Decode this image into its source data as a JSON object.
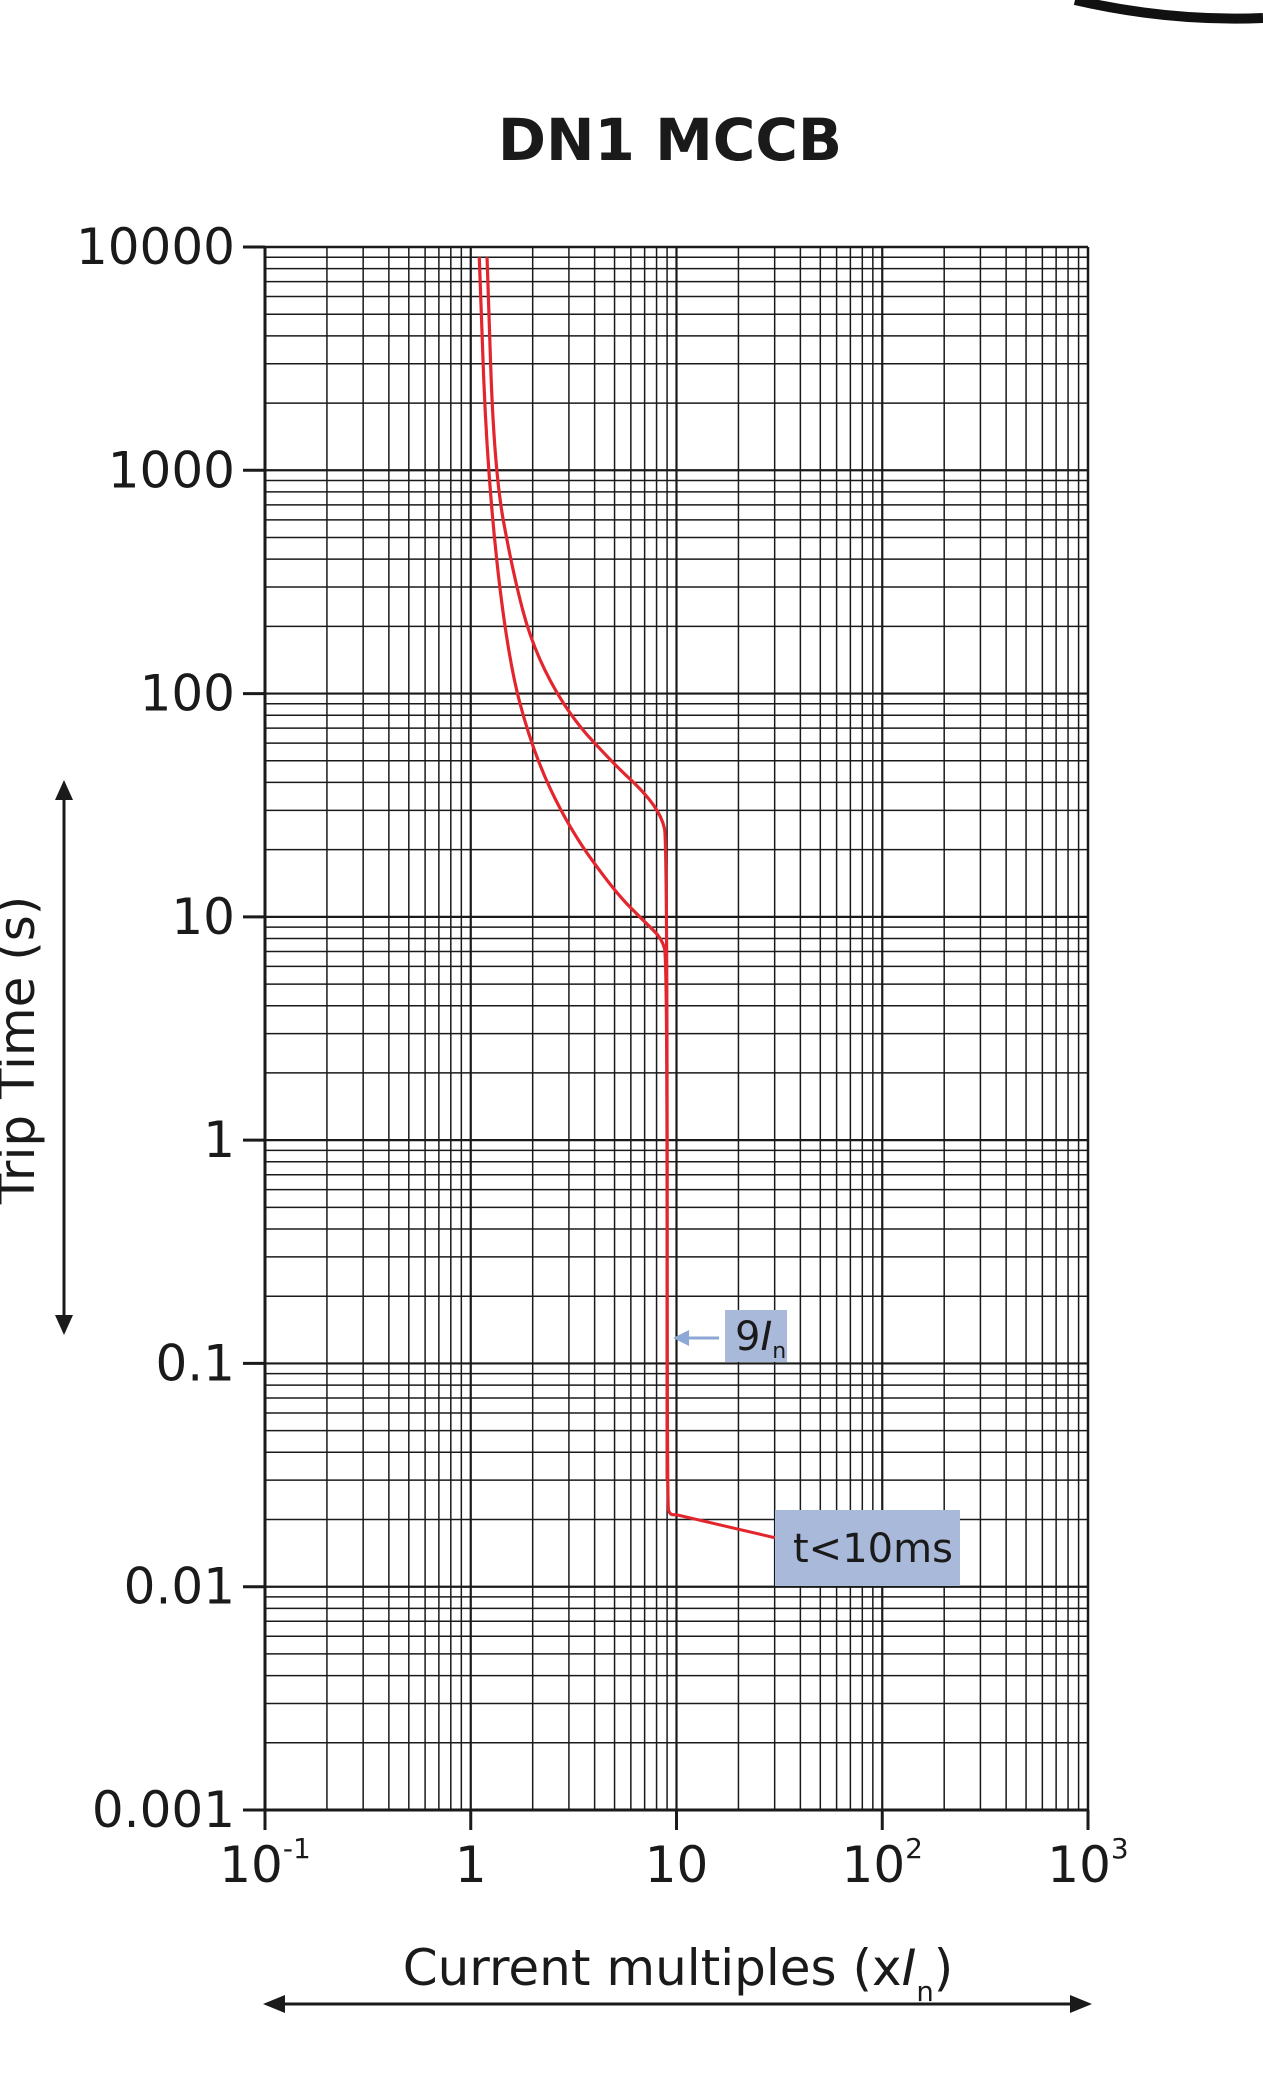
{
  "chart_data": {
    "type": "line",
    "title": "DN1 MCCB",
    "xlabel": {
      "prefix": "Current multiples (x",
      "italic": "I",
      "sub": "n",
      "suffix": ")"
    },
    "ylabel": "Trip Time (s)",
    "x_scale": "log",
    "y_scale": "log",
    "xlim": [
      0.1,
      1000
    ],
    "ylim": [
      0.001,
      10000
    ],
    "grid": true,
    "x_ticks": [
      {
        "value": 0.1,
        "base": "10",
        "exp": "-1"
      },
      {
        "value": 1,
        "base": "1",
        "exp": ""
      },
      {
        "value": 10,
        "base": "10",
        "exp": ""
      },
      {
        "value": 100,
        "base": "10",
        "exp": "2"
      },
      {
        "value": 1000,
        "base": "10",
        "exp": "3"
      }
    ],
    "y_ticks": [
      {
        "value": 10000,
        "label": "10000"
      },
      {
        "value": 1000,
        "label": "1000"
      },
      {
        "value": 100,
        "label": "100"
      },
      {
        "value": 10,
        "label": "10"
      },
      {
        "value": 1,
        "label": "1"
      },
      {
        "value": 0.1,
        "label": "0.1"
      },
      {
        "value": 0.01,
        "label": "0.01"
      },
      {
        "value": 0.001,
        "label": "0.001"
      }
    ],
    "series": [
      {
        "color": "#e3262d",
        "points": [
          [
            1.2,
            9000
          ],
          [
            1.3,
            1000
          ],
          [
            1.6,
            350
          ],
          [
            2,
            160
          ],
          [
            3,
            80
          ],
          [
            5,
            48
          ],
          [
            7,
            36
          ],
          [
            8.5,
            28
          ],
          [
            9,
            22
          ],
          [
            9,
            0.023
          ],
          [
            9.3,
            0.021
          ],
          [
            10,
            0.021
          ]
        ]
      },
      {
        "color": "#e3262d",
        "points": [
          [
            1.1,
            9000
          ],
          [
            1.2,
            1000
          ],
          [
            1.5,
            150
          ],
          [
            2,
            55
          ],
          [
            3,
            25
          ],
          [
            5,
            13
          ],
          [
            7,
            9.5
          ],
          [
            8.5,
            8
          ],
          [
            9,
            6.5
          ],
          [
            9,
            0.03
          ]
        ]
      }
    ],
    "annotations": [
      {
        "id": "9in",
        "text": "9",
        "italic": "I",
        "sub": "n",
        "points_to": [
          9.2,
          0.13
        ],
        "fill": "#a9b9d9",
        "arrow_color": "#8ea8d6"
      },
      {
        "id": "t10ms",
        "text": "t<10ms",
        "points_to": [
          10,
          0.021
        ],
        "fill": "#a9b9d9",
        "line_color": "#e3262d"
      }
    ]
  }
}
